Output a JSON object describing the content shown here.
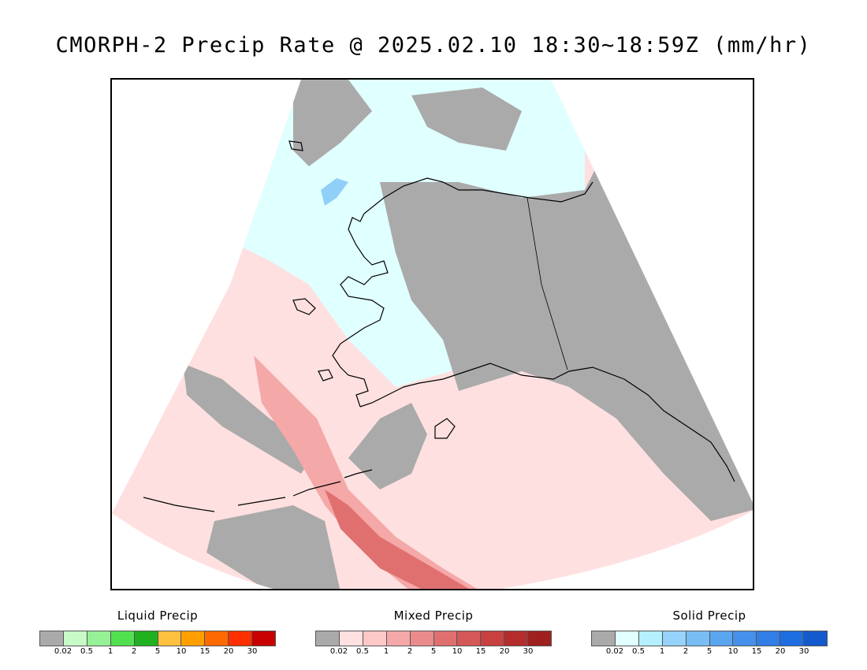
{
  "title": "CMORPH-2 Precip Rate @ 2025.02.10 18:30~18:59Z (mm/hr)",
  "map": {
    "region": "Alaska",
    "background_no_data": "#ffffff",
    "land_outline_color": "#000000",
    "fill_colors": {
      "trace": "#aaaaaa",
      "mixed_light": "#ffe0e0",
      "mixed_mid": "#f5a8a8",
      "mixed_heavy": "#e07070",
      "solid_light": "#e0ffff",
      "solid_mid": "#90d0f8"
    }
  },
  "legends": [
    {
      "title": "Liquid Precip",
      "colors": [
        "#aaaaaa",
        "#c8fac8",
        "#96f096",
        "#50e050",
        "#20b020",
        "#ffc040",
        "#ffa000",
        "#ff6a00",
        "#ff3000",
        "#c80000"
      ],
      "ticks": [
        "0.02",
        "0.5",
        "1",
        "2",
        "5",
        "10",
        "15",
        "20",
        "30"
      ]
    },
    {
      "title": "Mixed Precip",
      "colors": [
        "#aaaaaa",
        "#ffe0e0",
        "#ffc8c8",
        "#f5a8a8",
        "#ea8c8c",
        "#e07070",
        "#d45858",
        "#c84040",
        "#b42c2c",
        "#a02020"
      ],
      "ticks": [
        "0.02",
        "0.5",
        "1",
        "2",
        "5",
        "10",
        "15",
        "20",
        "30"
      ]
    },
    {
      "title": "Solid Precip",
      "colors": [
        "#aaaaaa",
        "#e0ffff",
        "#b4f0ff",
        "#96d2fa",
        "#78bef5",
        "#5aa5f0",
        "#4690eb",
        "#327de6",
        "#1e6ee1",
        "#145acd"
      ],
      "ticks": [
        "0.02",
        "0.5",
        "1",
        "2",
        "5",
        "10",
        "15",
        "20",
        "30"
      ]
    }
  ]
}
